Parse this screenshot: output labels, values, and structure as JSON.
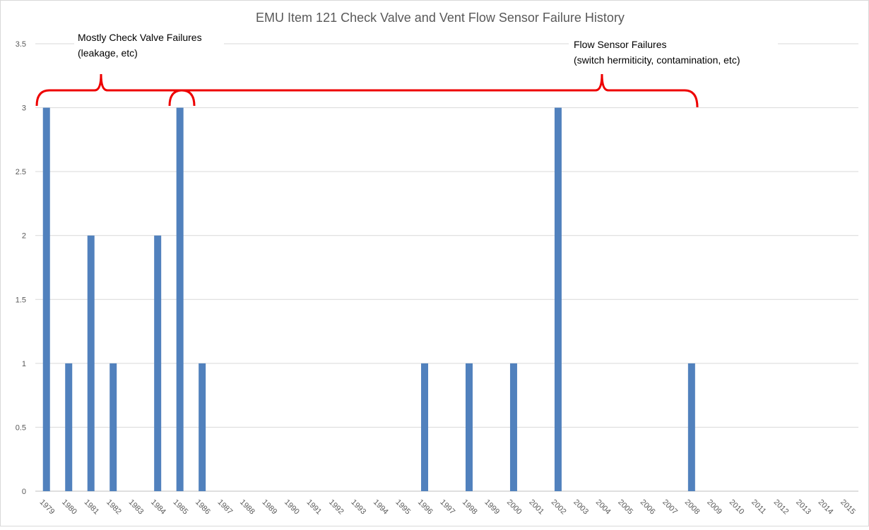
{
  "chart_data": {
    "type": "bar",
    "title": "EMU Item 121 Check Valve and Vent Flow Sensor Failure History",
    "annotations": [
      "Mostly Check Valve Failures",
      "(leakage, etc)",
      "Flow Sensor Failures",
      "(switch hermiticity, contamination, etc)"
    ],
    "categories": [
      "1979",
      "1980",
      "1981",
      "1982",
      "1983",
      "1984",
      "1985",
      "1986",
      "1987",
      "1988",
      "1989",
      "1990",
      "1991",
      "1992",
      "1993",
      "1994",
      "1995",
      "1996",
      "1997",
      "1998",
      "1999",
      "2000",
      "2001",
      "2002",
      "2003",
      "2004",
      "2005",
      "2006",
      "2007",
      "2008",
      "2009",
      "2010",
      "2011",
      "2012",
      "2013",
      "2014",
      "2015"
    ],
    "values": [
      3,
      1,
      2,
      1,
      0,
      2,
      3,
      1,
      0,
      0,
      0,
      0,
      0,
      0,
      0,
      0,
      0,
      1,
      0,
      1,
      0,
      1,
      0,
      3,
      0,
      0,
      0,
      0,
      0,
      1,
      0,
      0,
      0,
      0,
      0,
      0,
      0
    ],
    "color": "#5181bd",
    "ylim": [
      0,
      3.5
    ],
    "yticks": [
      0,
      0.5,
      1,
      1.5,
      2,
      2.5,
      3,
      3.5
    ],
    "grid": true
  }
}
